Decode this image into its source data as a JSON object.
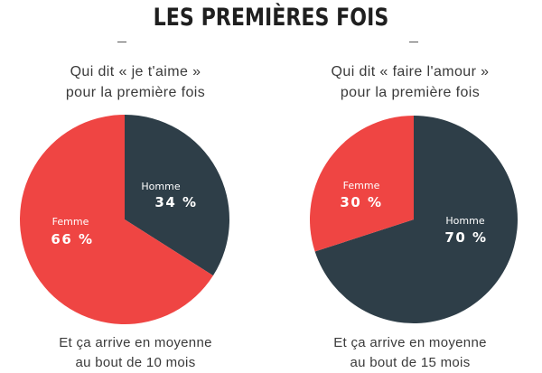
{
  "title": "LES PREMIÈRES FOIS",
  "colors": {
    "homme": "#2e3e48",
    "femme": "#ef4543"
  },
  "chart_data": [
    {
      "type": "pie",
      "title_lines": [
        "Qui dit « je t'aime »",
        "pour la première fois"
      ],
      "slices": [
        {
          "label": "Homme",
          "value": 34,
          "value_text": "34 %",
          "color": "#2e3e48"
        },
        {
          "label": "Femme",
          "value": 66,
          "value_text": "66 %",
          "color": "#ef4543"
        }
      ],
      "footer_lines": [
        "Et ça arrive en moyenne",
        "au bout de 10 mois"
      ]
    },
    {
      "type": "pie",
      "title_lines": [
        "Qui dit « faire l'amour »",
        "pour la première fois"
      ],
      "slices": [
        {
          "label": "Homme",
          "value": 70,
          "value_text": "70 %",
          "color": "#2e3e48"
        },
        {
          "label": "Femme",
          "value": 30,
          "value_text": "30 %",
          "color": "#ef4543"
        }
      ],
      "footer_lines": [
        "Et ça arrive en moyenne",
        "au bout de 15 mois"
      ]
    }
  ]
}
